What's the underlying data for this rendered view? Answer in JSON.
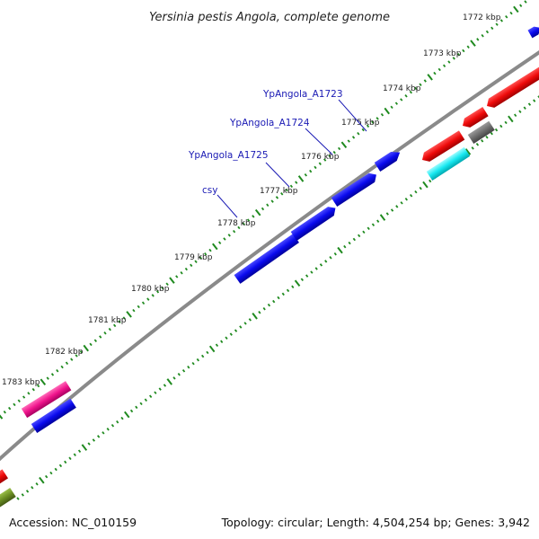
{
  "title": "Yersinia pestis Angola, complete genome",
  "accession": "Accession: NC_010159",
  "topology": "Topology: circular; Length: 4,504,254 bp; Genes: 3,942",
  "kbp_labels": [
    {
      "text": "1772 kbp"
    },
    {
      "text": "1773 kbp"
    },
    {
      "text": "1774 kbp"
    },
    {
      "text": "1775 kbp"
    },
    {
      "text": "1776 kbp"
    },
    {
      "text": "1777 kbp"
    },
    {
      "text": "1778 kbp"
    },
    {
      "text": "1779 kbp"
    },
    {
      "text": "1780 kbp"
    },
    {
      "text": "1781 kbp"
    },
    {
      "text": "1782 kbp"
    },
    {
      "text": "1783 kbp"
    }
  ],
  "gene_labels": [
    {
      "text": "YpAngola_A1723",
      "color": "#1a1ab4"
    },
    {
      "text": "YpAngola_A1724",
      "color": "#1a1ab4"
    },
    {
      "text": "YpAngola_A1725",
      "color": "#1a1ab4"
    },
    {
      "text": "csy",
      "color": "#1a1ab4"
    }
  ],
  "colors": {
    "backbone": "#8a8a8a",
    "tick": "#1f8a1f",
    "leader": "#1a1ab4",
    "gene_blue": "#0a0aee",
    "gene_red": "#ee0a0a",
    "gene_magenta": "#f0148c",
    "gene_cyan": "#18e8f0",
    "gene_gray": "#6e6e6e",
    "gene_olive": "#6b8e23"
  }
}
